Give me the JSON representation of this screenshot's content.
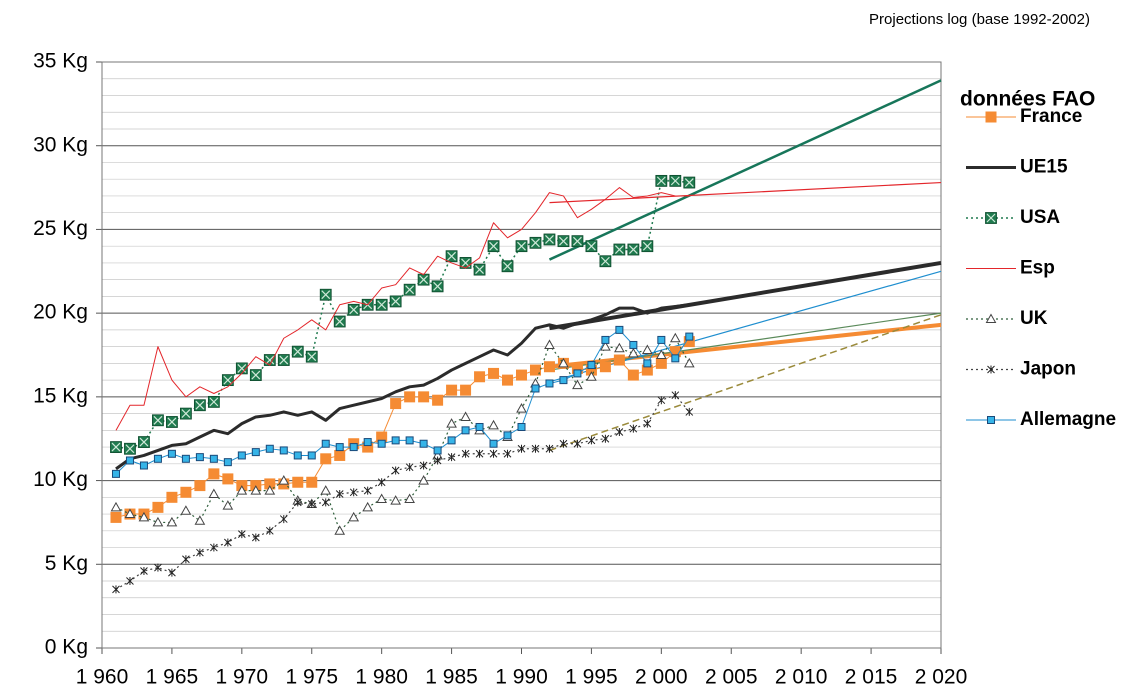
{
  "chart_data": {
    "type": "line",
    "annotation": "Projections log (base 1992-2002)",
    "legend_title": "données FAO",
    "legend": "right",
    "grid": true,
    "xlim": [
      1960,
      2020
    ],
    "xticks": [
      {
        "value": 1960,
        "label": "1 960"
      },
      {
        "value": 1965,
        "label": "1 965"
      },
      {
        "value": 1970,
        "label": "1 970"
      },
      {
        "value": 1975,
        "label": "1 975"
      },
      {
        "value": 1980,
        "label": "1 980"
      },
      {
        "value": 1985,
        "label": "1 985"
      },
      {
        "value": 1990,
        "label": "1 990"
      },
      {
        "value": 1995,
        "label": "1 995"
      },
      {
        "value": 2000,
        "label": "2 000"
      },
      {
        "value": 2005,
        "label": "2 005"
      },
      {
        "value": 2010,
        "label": "2 010"
      },
      {
        "value": 2015,
        "label": "2 015"
      },
      {
        "value": 2020,
        "label": "2 020"
      }
    ],
    "ylim": [
      0,
      35
    ],
    "yticks": [
      {
        "value": 0,
        "label": "0 Kg"
      },
      {
        "value": 5,
        "label": "5 Kg"
      },
      {
        "value": 10,
        "label": "10 Kg"
      },
      {
        "value": 15,
        "label": "15 Kg"
      },
      {
        "value": 20,
        "label": "20 Kg"
      },
      {
        "value": 25,
        "label": "25 Kg"
      },
      {
        "value": 30,
        "label": "30 Kg"
      },
      {
        "value": 35,
        "label": "35 Kg"
      }
    ],
    "yminorticks": [
      1,
      2,
      3,
      4,
      6,
      7,
      8,
      9,
      11,
      12,
      13,
      14,
      16,
      17,
      18,
      19,
      21,
      22,
      23,
      24,
      26,
      27,
      28,
      29,
      31,
      32,
      33,
      34
    ],
    "x": [
      1961,
      1962,
      1963,
      1964,
      1965,
      1966,
      1967,
      1968,
      1969,
      1970,
      1971,
      1972,
      1973,
      1974,
      1975,
      1976,
      1977,
      1978,
      1979,
      1980,
      1981,
      1982,
      1983,
      1984,
      1985,
      1986,
      1987,
      1988,
      1989,
      1990,
      1991,
      1992,
      1993,
      1994,
      1995,
      1996,
      1997,
      1998,
      1999,
      2000,
      2001,
      2002
    ],
    "series": [
      {
        "name": "France",
        "color": "#f58b33",
        "marker": "square",
        "dash": "solid",
        "width": 1,
        "values": [
          7.8,
          8.0,
          8.0,
          8.4,
          9.0,
          9.3,
          9.7,
          10.4,
          10.1,
          9.7,
          9.7,
          9.8,
          9.8,
          9.9,
          9.9,
          11.3,
          11.5,
          12.2,
          12.0,
          12.6,
          14.6,
          15.0,
          15.0,
          14.8,
          15.4,
          15.4,
          16.2,
          16.4,
          16.0,
          16.3,
          16.6,
          16.8,
          17.0,
          16.7,
          16.6,
          16.8,
          17.2,
          16.3,
          16.6,
          17.0,
          17.7,
          18.3
        ]
      },
      {
        "name": "UE15",
        "color": "#2b2b2b",
        "marker": "none",
        "dash": "solid",
        "width": 3,
        "values": [
          10.7,
          11.3,
          11.5,
          11.8,
          12.1,
          12.2,
          12.6,
          13.0,
          12.8,
          13.4,
          13.8,
          13.9,
          14.1,
          13.9,
          14.1,
          13.6,
          14.3,
          14.5,
          14.7,
          14.9,
          15.3,
          15.6,
          15.7,
          16.1,
          16.6,
          17.0,
          17.4,
          17.8,
          17.5,
          18.2,
          19.1,
          19.3,
          19.1,
          19.4,
          19.6,
          19.9,
          20.3,
          20.3,
          20.0,
          20.3,
          20.4,
          20.5
        ]
      },
      {
        "name": "USA",
        "color": "#1f7a4e",
        "marker": "xsquare",
        "dash": "dotted",
        "width": 1.5,
        "values": [
          12.0,
          11.9,
          12.3,
          13.6,
          13.5,
          14.0,
          14.5,
          14.7,
          16.0,
          16.7,
          16.3,
          17.2,
          17.2,
          17.7,
          17.4,
          21.1,
          19.5,
          20.2,
          20.5,
          20.5,
          20.7,
          21.4,
          22.0,
          21.6,
          23.4,
          23.0,
          22.6,
          24.0,
          22.8,
          24.0,
          24.2,
          24.4,
          24.3,
          24.3,
          24.0,
          23.1,
          23.8,
          23.8,
          24.0,
          27.9,
          27.9,
          27.8
        ]
      },
      {
        "name": "Esp",
        "color": "#e3262b",
        "marker": "none",
        "dash": "solid",
        "width": 1,
        "values": [
          13.0,
          14.5,
          14.5,
          18.0,
          16.0,
          15.0,
          15.6,
          15.2,
          15.6,
          16.4,
          17.4,
          16.9,
          18.5,
          19.0,
          19.6,
          19.0,
          20.5,
          20.7,
          20.5,
          21.5,
          21.7,
          22.7,
          22.3,
          23.4,
          23.0,
          22.7,
          23.3,
          25.4,
          24.5,
          25.0,
          26.0,
          27.2,
          27.0,
          25.7,
          26.2,
          26.8,
          27.5,
          26.9,
          27.0,
          27.2,
          27.0,
          27.0
        ]
      },
      {
        "name": "UK",
        "color": "#2e5e3a",
        "marker": "triangle",
        "dash": "dotted",
        "width": 1.2,
        "values": [
          8.4,
          8.0,
          7.8,
          7.5,
          7.5,
          8.2,
          7.6,
          9.2,
          8.5,
          9.4,
          9.4,
          9.4,
          10.0,
          8.8,
          8.6,
          9.4,
          7.0,
          7.8,
          8.4,
          8.9,
          8.8,
          8.9,
          10.0,
          11.5,
          13.4,
          13.8,
          13.0,
          13.3,
          12.6,
          14.3,
          15.8,
          18.1,
          17.0,
          15.7,
          16.2,
          18.0,
          17.9,
          17.6,
          17.8,
          17.5,
          18.5,
          17.0
        ]
      },
      {
        "name": "Japon",
        "color": "#444444",
        "marker": "star",
        "dash": "dotted",
        "width": 1.2,
        "values": [
          3.5,
          4.0,
          4.6,
          4.8,
          4.5,
          5.3,
          5.7,
          6.0,
          6.3,
          6.8,
          6.6,
          7.0,
          7.7,
          8.7,
          8.6,
          8.7,
          9.2,
          9.3,
          9.4,
          9.9,
          10.6,
          10.8,
          10.9,
          11.2,
          11.4,
          11.6,
          11.6,
          11.6,
          11.6,
          11.9,
          11.9,
          11.9,
          12.2,
          12.2,
          12.4,
          12.5,
          12.9,
          13.1,
          13.4,
          14.8,
          15.1,
          14.1
        ]
      },
      {
        "name": "Allemagne",
        "color": "#1e8ecf",
        "marker": "smallsquare",
        "dash": "solid",
        "width": 1,
        "values": [
          10.4,
          11.2,
          10.9,
          11.3,
          11.6,
          11.3,
          11.4,
          11.3,
          11.1,
          11.5,
          11.7,
          11.9,
          11.8,
          11.5,
          11.5,
          12.2,
          12.0,
          12.0,
          12.3,
          12.2,
          12.4,
          12.4,
          12.2,
          11.8,
          12.4,
          13.0,
          13.2,
          12.2,
          12.7,
          13.2,
          15.5,
          15.8,
          16.0,
          16.4,
          16.9,
          18.4,
          19.0,
          18.1,
          17.0,
          18.4,
          17.3,
          18.6
        ]
      }
    ],
    "projections": [
      {
        "color": "#f58b33",
        "width": 4,
        "dash": "solid",
        "x": [
          1992,
          2020
        ],
        "values": [
          16.8,
          19.3
        ]
      },
      {
        "color": "#2b2b2b",
        "width": 4,
        "dash": "solid",
        "x": [
          1992,
          2020
        ],
        "values": [
          19.1,
          23.0
        ]
      },
      {
        "color": "#17765a",
        "width": 2.5,
        "dash": "solid",
        "x": [
          1992,
          2020
        ],
        "values": [
          23.2,
          33.9
        ]
      },
      {
        "color": "#e3262b",
        "width": 1.2,
        "dash": "solid",
        "x": [
          1992,
          2020
        ],
        "values": [
          26.6,
          27.8
        ]
      },
      {
        "color": "#5a8a5a",
        "width": 1.2,
        "dash": "solid",
        "x": [
          1992,
          2020
        ],
        "values": [
          16.6,
          20.0
        ]
      },
      {
        "color": "#9a8a3a",
        "width": 1.5,
        "dash": "dashed",
        "x": [
          1992,
          2020
        ],
        "values": [
          11.8,
          19.9
        ]
      },
      {
        "color": "#1e8ecf",
        "width": 1.2,
        "dash": "solid",
        "x": [
          1992,
          2020
        ],
        "values": [
          15.9,
          22.5
        ]
      }
    ]
  }
}
